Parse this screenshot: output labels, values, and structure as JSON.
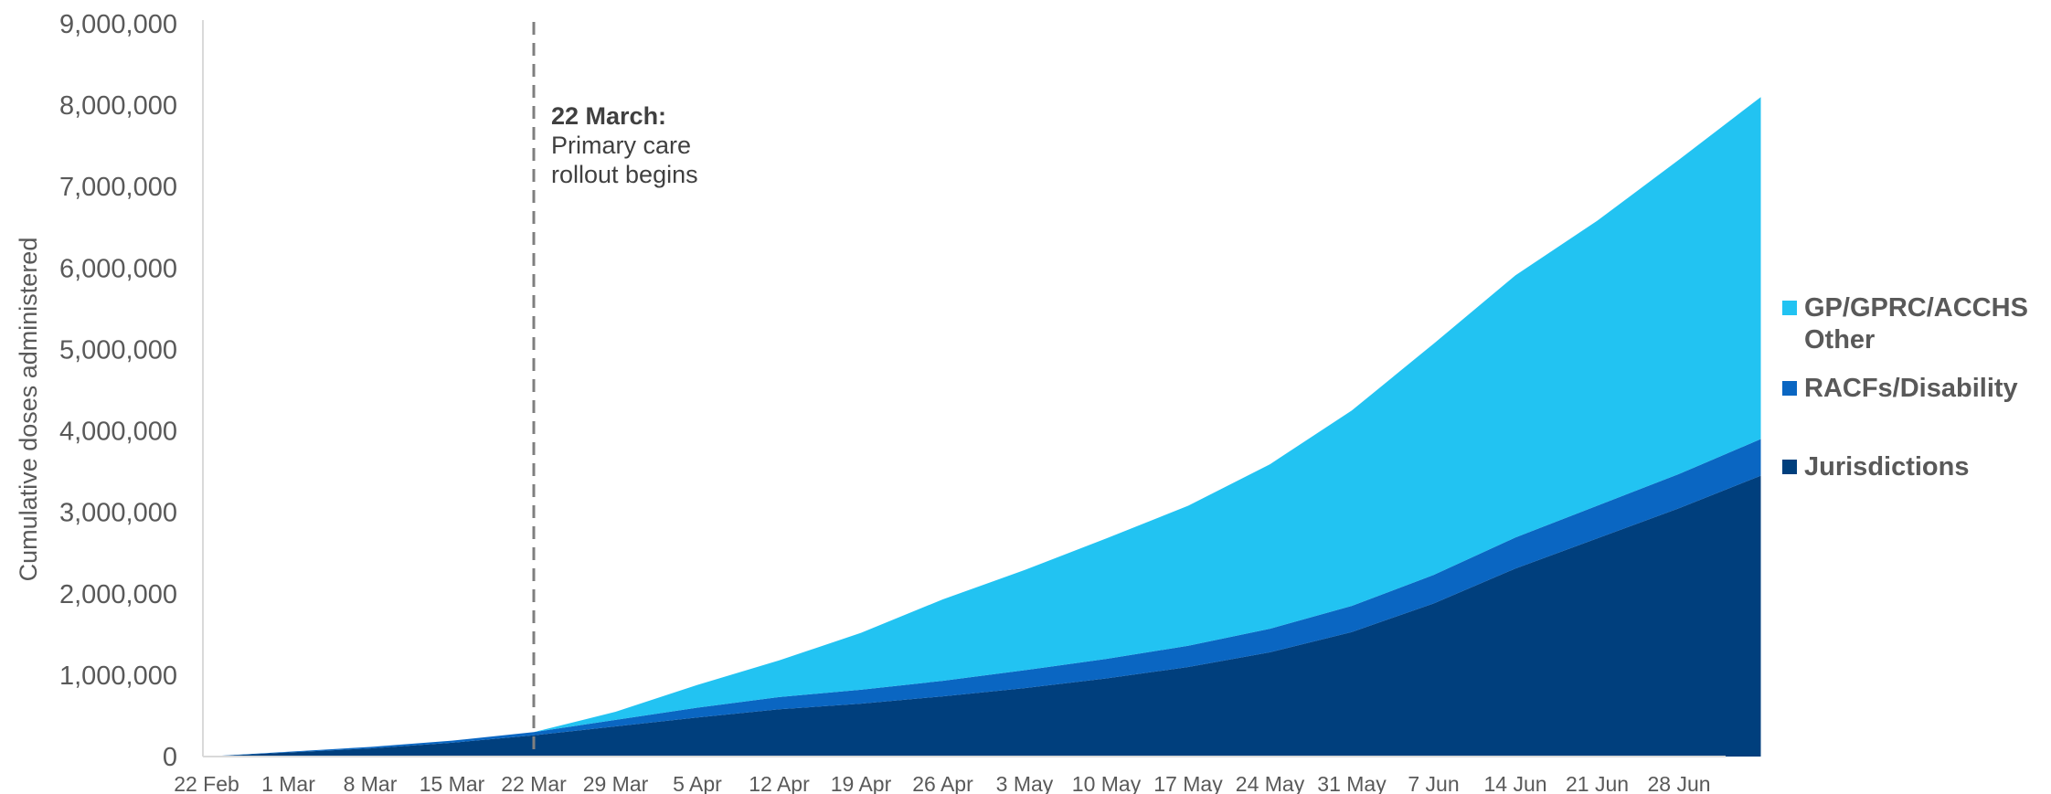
{
  "chart_data": {
    "type": "area",
    "stacked": true,
    "ylabel": "Cumulative doses administered",
    "xlabel": "",
    "ylim": [
      0,
      9000000
    ],
    "yticks": [
      "0",
      "1,000,000",
      "2,000,000",
      "3,000,000",
      "4,000,000",
      "5,000,000",
      "6,000,000",
      "7,000,000",
      "8,000,000",
      "9,000,000"
    ],
    "xticks": [
      "22 Feb",
      "1 Mar",
      "8 Mar",
      "15 Mar",
      "22 Mar",
      "29 Mar",
      "5 Apr",
      "12 Apr",
      "19 Apr",
      "26 Apr",
      "3 May",
      "10 May",
      "17 May",
      "24 May",
      "31 May",
      "7 Jun",
      "14 Jun",
      "21 Jun",
      "28 Jun"
    ],
    "x": [
      "22 Feb",
      "1 Mar",
      "8 Mar",
      "15 Mar",
      "22 Mar",
      "29 Mar",
      "5 Apr",
      "12 Apr",
      "19 Apr",
      "26 Apr",
      "3 May",
      "10 May",
      "17 May",
      "24 May",
      "31 May",
      "7 Jun",
      "14 Jun",
      "21 Jun",
      "28 Jun",
      "4 Jul"
    ],
    "series": [
      {
        "name": "Jurisdictions",
        "color": "#003f7d",
        "values": [
          0,
          50000,
          100000,
          170000,
          260000,
          370000,
          480000,
          580000,
          650000,
          740000,
          840000,
          960000,
          1100000,
          1280000,
          1530000,
          1880000,
          2310000,
          2680000,
          3050000,
          3450000
        ]
      },
      {
        "name": "RACFs/Disability",
        "color": "#0a66c2",
        "values": [
          0,
          10000,
          18000,
          25000,
          40000,
          80000,
          120000,
          150000,
          170000,
          190000,
          220000,
          240000,
          260000,
          290000,
          320000,
          350000,
          380000,
          400000,
          420000,
          450000
        ]
      },
      {
        "name": "GP/GPRC/ACCHS Other",
        "color": "#22c3f2",
        "values": [
          0,
          0,
          0,
          0,
          0,
          100000,
          280000,
          450000,
          700000,
          1000000,
          1230000,
          1480000,
          1720000,
          2020000,
          2400000,
          2840000,
          3220000,
          3500000,
          3860000,
          4200000
        ]
      }
    ],
    "annotation": {
      "x": "22 Mar",
      "title": "22 March:",
      "lines": [
        "Primary care",
        "rollout begins"
      ]
    },
    "legend": {
      "position": "right",
      "order": [
        "GP/GPRC/ACCHS Other",
        "RACFs/Disability",
        "Jurisdictions"
      ]
    }
  }
}
